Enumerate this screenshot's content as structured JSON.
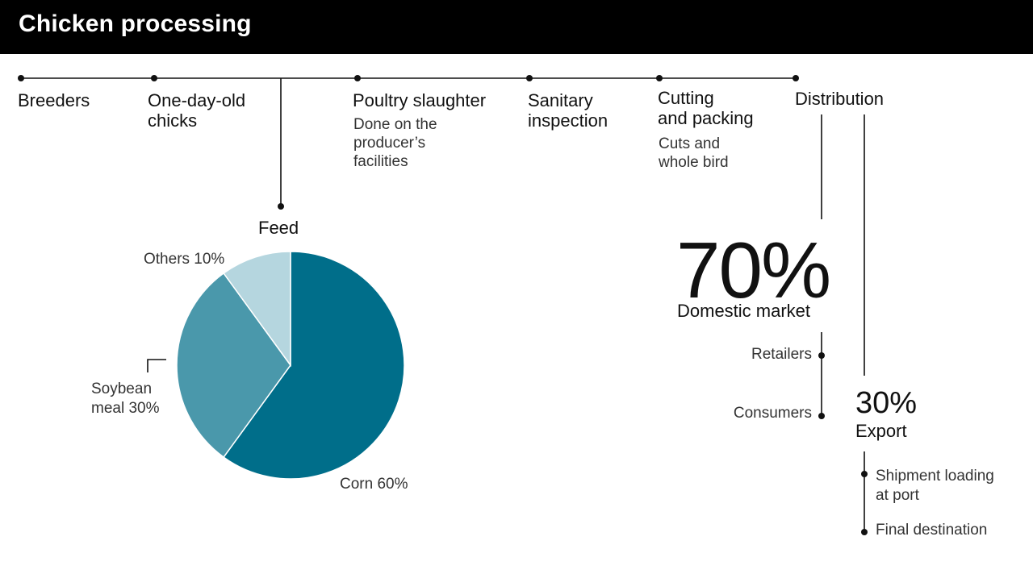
{
  "header": {
    "title": "Chicken processing"
  },
  "timeline": {
    "steps": [
      {
        "label": "Breeders",
        "sub": ""
      },
      {
        "label": "One-day-old\nchicks",
        "sub": ""
      },
      {
        "label": "Poultry slaughter",
        "sub": "Done on the\nproducer’s\nfacilities"
      },
      {
        "label": "Sanitary\ninspection",
        "sub": ""
      },
      {
        "label": "Cutting\nand packing",
        "sub": "Cuts and\nwhole bird"
      },
      {
        "label": "Distribution",
        "sub": ""
      }
    ],
    "feed_label": "Feed"
  },
  "chart_data": {
    "type": "pie",
    "title": "Feed",
    "slices": [
      {
        "label": "Corn 60%",
        "value": 60,
        "color": "#006e8a"
      },
      {
        "label": "Soybean\nmeal 30%",
        "value": 30,
        "color": "#4a98ab"
      },
      {
        "label": "Others 10%",
        "value": 10,
        "color": "#b5d6df"
      }
    ]
  },
  "distribution": {
    "domestic": {
      "percent": "70%",
      "label": "Domestic market",
      "items": [
        "Retailers",
        "Consumers"
      ]
    },
    "export": {
      "percent": "30%",
      "label": "Export",
      "items": [
        "Shipment loading\nat port",
        "Final destination"
      ]
    }
  },
  "colors": {
    "header_bg": "#000000",
    "header_text": "#ffffff",
    "line": "#111111"
  }
}
